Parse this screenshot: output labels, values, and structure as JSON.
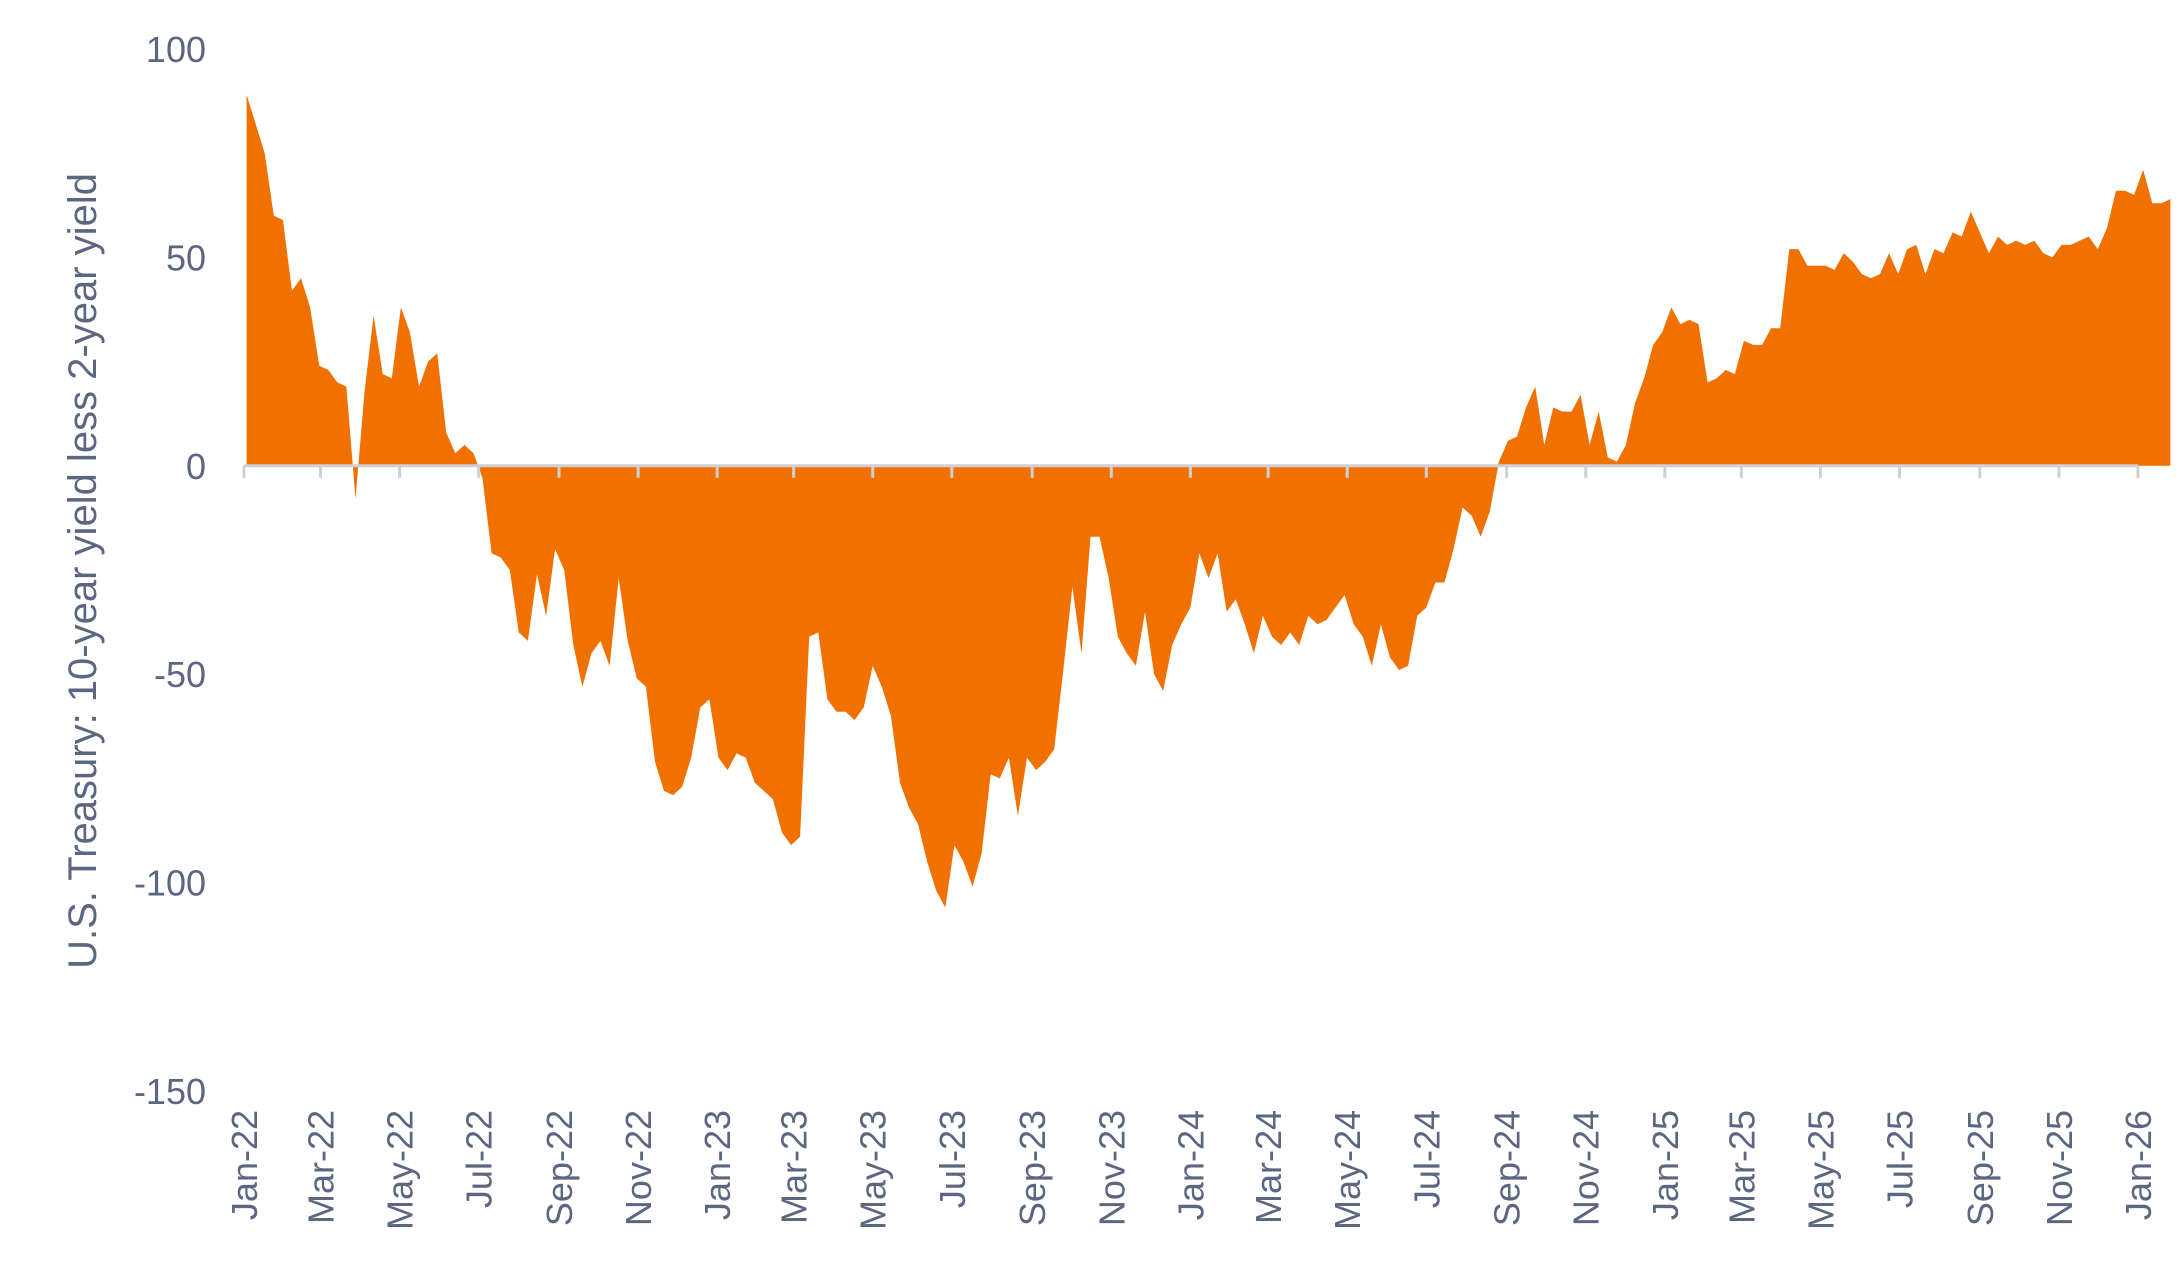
{
  "chart_data": {
    "type": "area",
    "title": "",
    "xlabel": "",
    "ylabel": "U.S. Treasury: 10-year yield less 2-year yield",
    "ylim": [
      -150,
      100
    ],
    "yticks": [
      100,
      50,
      0,
      -50,
      -100,
      -150
    ],
    "xlim": [
      "2022-01",
      "2026-01"
    ],
    "x_tick_labels": [
      "Jan-22",
      "Mar-22",
      "May-22",
      "Jul-22",
      "Sep-22",
      "Nov-22",
      "Jan-23",
      "Mar-23",
      "May-23",
      "Jul-23",
      "Sep-23",
      "Nov-23",
      "Jan-24",
      "Mar-24",
      "May-24",
      "Jul-24",
      "Sep-24",
      "Nov-24",
      "Jan-25",
      "Mar-25",
      "May-25",
      "Jul-25",
      "Sep-25",
      "Nov-25",
      "Jan-26"
    ],
    "grid": false,
    "legend": "none",
    "colors": {
      "area": "#f07000",
      "axis": "#cfcfd6",
      "text": "#5b6680"
    },
    "series": [
      {
        "x": [
          "2022-01-03",
          "2022-01-10",
          "2022-01-17",
          "2022-01-24",
          "2022-01-31",
          "2022-02-07",
          "2022-02-14",
          "2022-02-21",
          "2022-02-28",
          "2022-03-07",
          "2022-03-14",
          "2022-03-21",
          "2022-03-28",
          "2022-04-04",
          "2022-04-11",
          "2022-04-18",
          "2022-04-25",
          "2022-05-02",
          "2022-05-09",
          "2022-05-16",
          "2022-05-23",
          "2022-05-30",
          "2022-06-06",
          "2022-06-13",
          "2022-06-20",
          "2022-06-27",
          "2022-07-04",
          "2022-07-11",
          "2022-07-18",
          "2022-07-25",
          "2022-08-01",
          "2022-08-08",
          "2022-08-15",
          "2022-08-22",
          "2022-08-29",
          "2022-09-05",
          "2022-09-12",
          "2022-09-19",
          "2022-09-26",
          "2022-10-03",
          "2022-10-10",
          "2022-10-17",
          "2022-10-24",
          "2022-10-31",
          "2022-11-07",
          "2022-11-14",
          "2022-11-21",
          "2022-11-28",
          "2022-12-05",
          "2022-12-12",
          "2022-12-19",
          "2022-12-26",
          "2023-01-02",
          "2023-01-09",
          "2023-01-16",
          "2023-01-23",
          "2023-01-30",
          "2023-02-06",
          "2023-02-13",
          "2023-02-20",
          "2023-02-27",
          "2023-03-06",
          "2023-03-13",
          "2023-03-20",
          "2023-03-27",
          "2023-04-03",
          "2023-04-10",
          "2023-04-17",
          "2023-04-24",
          "2023-05-01",
          "2023-05-08",
          "2023-05-15",
          "2023-05-22",
          "2023-05-29",
          "2023-06-05",
          "2023-06-12",
          "2023-06-19",
          "2023-06-26",
          "2023-07-03",
          "2023-07-10",
          "2023-07-17",
          "2023-07-24",
          "2023-07-31",
          "2023-08-07",
          "2023-08-14",
          "2023-08-21",
          "2023-08-28",
          "2023-09-04",
          "2023-09-11",
          "2023-09-18",
          "2023-09-25",
          "2023-10-02",
          "2023-10-09",
          "2023-10-16",
          "2023-10-23",
          "2023-10-30",
          "2023-11-06",
          "2023-11-13",
          "2023-11-20",
          "2023-11-27",
          "2023-12-04",
          "2023-12-11",
          "2023-12-18",
          "2023-12-25",
          "2024-01-01",
          "2024-01-08",
          "2024-01-15",
          "2024-01-22",
          "2024-01-29",
          "2024-02-05",
          "2024-02-12",
          "2024-02-19",
          "2024-02-26",
          "2024-03-04",
          "2024-03-11",
          "2024-03-18",
          "2024-03-25",
          "2024-04-01",
          "2024-04-08",
          "2024-04-15",
          "2024-04-22",
          "2024-04-29",
          "2024-05-06",
          "2024-05-13",
          "2024-05-20",
          "2024-05-27",
          "2024-06-03",
          "2024-06-10",
          "2024-06-17",
          "2024-06-24",
          "2024-07-01",
          "2024-07-08",
          "2024-07-15",
          "2024-07-22",
          "2024-07-29",
          "2024-08-05",
          "2024-08-12",
          "2024-08-19",
          "2024-08-26",
          "2024-09-02",
          "2024-09-09",
          "2024-09-16",
          "2024-09-23",
          "2024-09-30",
          "2024-10-07",
          "2024-10-14",
          "2024-10-21",
          "2024-10-28",
          "2024-11-04",
          "2024-11-11",
          "2024-11-18",
          "2024-11-25",
          "2024-12-02",
          "2024-12-09",
          "2024-12-16",
          "2024-12-23",
          "2024-12-30",
          "2025-01-06",
          "2025-01-13",
          "2025-01-20",
          "2025-01-27",
          "2025-02-03",
          "2025-02-10",
          "2025-02-17",
          "2025-02-24",
          "2025-03-03",
          "2025-03-10",
          "2025-03-17",
          "2025-03-24",
          "2025-03-31",
          "2025-04-07",
          "2025-04-14",
          "2025-04-21",
          "2025-04-28",
          "2025-05-05",
          "2025-05-12",
          "2025-05-19",
          "2025-05-26",
          "2025-06-02",
          "2025-06-09",
          "2025-06-16",
          "2025-06-23",
          "2025-06-30",
          "2025-07-07",
          "2025-07-14",
          "2025-07-21",
          "2025-07-28",
          "2025-08-04",
          "2025-08-11",
          "2025-08-18",
          "2025-08-25",
          "2025-09-01",
          "2025-09-08",
          "2025-09-15",
          "2025-09-22",
          "2025-09-29",
          "2025-10-06",
          "2025-10-13",
          "2025-10-20",
          "2025-10-27",
          "2025-11-03",
          "2025-11-10",
          "2025-11-17",
          "2025-11-24",
          "2025-12-01",
          "2025-12-08",
          "2025-12-15",
          "2025-12-22",
          "2025-12-29",
          "2026-01-05",
          "2026-01-12",
          "2026-01-19",
          "2026-01-26"
        ],
        "values": [
          89,
          82,
          75,
          60,
          59,
          42,
          45,
          38,
          24,
          23,
          20,
          19,
          -8,
          18,
          36,
          22,
          21,
          38,
          32,
          19,
          25,
          27,
          8,
          3,
          5,
          3,
          -3,
          -21,
          -22,
          -25,
          -40,
          -42,
          -26,
          -36,
          -20,
          -25,
          -43,
          -53,
          -45,
          -42,
          -48,
          -27,
          -42,
          -51,
          -53,
          -71,
          -78,
          -79,
          -77,
          -70,
          -58,
          -56,
          -70,
          -73,
          -69,
          -70,
          -76,
          -78,
          -80,
          -88,
          -91,
          -89,
          -41,
          -40,
          -56,
          -59,
          -59,
          -61,
          -58,
          -48,
          -53,
          -60,
          -76,
          -82,
          -86,
          -95,
          -102,
          -106,
          -91,
          -95,
          -101,
          -93,
          -74,
          -75,
          -70,
          -84,
          -70,
          -73,
          -71,
          -68,
          -49,
          -29,
          -45,
          -17,
          -17,
          -27,
          -41,
          -45,
          -48,
          -35,
          -50,
          -54,
          -43,
          -38,
          -34,
          -21,
          -27,
          -21,
          -35,
          -32,
          -38,
          -45,
          -36,
          -41,
          -43,
          -40,
          -43,
          -36,
          -38,
          -37,
          -34,
          -31,
          -38,
          -41,
          -48,
          -38,
          -46,
          -49,
          -48,
          -36,
          -34,
          -28,
          -28,
          -20,
          -10,
          -12,
          -17,
          -11,
          1,
          6,
          7,
          14,
          19,
          5,
          14,
          13,
          13,
          17,
          5,
          13,
          2,
          1,
          5,
          15,
          21,
          29,
          32,
          38,
          34,
          35,
          34,
          20,
          21,
          23,
          22,
          30,
          29,
          29,
          33,
          33,
          52,
          52,
          48,
          48,
          48,
          47,
          51,
          49,
          46,
          45,
          46,
          51,
          46,
          52,
          53,
          46,
          52,
          51,
          56,
          55,
          61,
          56,
          51,
          55,
          53,
          54,
          53,
          54,
          51,
          50,
          53,
          53,
          54,
          55,
          52,
          57,
          66,
          66,
          65,
          71,
          63,
          63,
          64
        ]
      }
    ]
  }
}
